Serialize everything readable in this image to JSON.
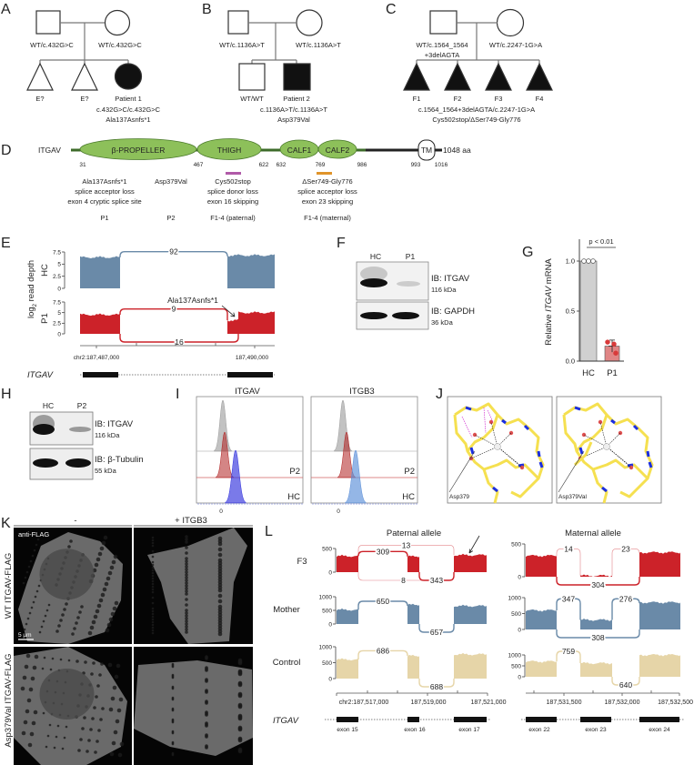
{
  "panel_labels": [
    "A",
    "B",
    "C",
    "D",
    "E",
    "F",
    "G",
    "H",
    "I",
    "J",
    "K",
    "L"
  ],
  "pedigree_a": {
    "father": "WT/c.432G>C",
    "mother": "WT/c.432G>C",
    "children": [
      "E?",
      "E?",
      "Patient 1"
    ],
    "genotype": "c.432G>C/c.432G>C",
    "protein": "Ala137Asnfs*1"
  },
  "pedigree_b": {
    "father": "WT/c.1136A>T",
    "mother": "WT/c.1136A>T",
    "children": [
      "WT/WT",
      "Patient 2"
    ],
    "genotype": "c.1136A>T/c.1136A>T",
    "protein": "Asp379Val"
  },
  "pedigree_c": {
    "father_line1": "WT/c.1564_1564",
    "father_line2": "+3delAGTA",
    "mother": "WT/c.2247-1G>A",
    "children": [
      "F1",
      "F2",
      "F3",
      "F4"
    ],
    "genotype": "c.1564_1564+3delAGTA/c.2247-1G>A",
    "protein": "Cys502stop/ΔSer749-Gly776"
  },
  "domain_map": {
    "gene": "ITGAV",
    "domains": [
      "β-PROPELLER",
      "THIGH",
      "CALF1",
      "CALF2",
      "TM"
    ],
    "positions": [
      "31",
      "467",
      "622",
      "632",
      "769",
      "986",
      "993",
      "1016"
    ],
    "length": "1048 aa",
    "annotations": [
      {
        "lines": [
          "Ala137Asnfs*1",
          "splice acceptor loss",
          "exon 4 cryptic splice site"
        ],
        "group": "P1"
      },
      {
        "lines": [
          "Asp379Val"
        ],
        "group": "P2"
      },
      {
        "lines": [
          "Cys502stop",
          "splice donor loss",
          "exon 16 skipping"
        ],
        "group": "F1-4 (paternal)"
      },
      {
        "lines": [
          "ΔSer749-Gly776",
          "splice acceptor loss",
          "exon 23 skipping"
        ],
        "group": "F1-4 (maternal)"
      }
    ],
    "colors": {
      "domain": "#8dc05a",
      "paternal_bar": "#b05aa8",
      "maternal_bar": "#e0942a"
    }
  },
  "panel_e": {
    "ylabel_prefix": "log",
    "ylabel_sub": "2",
    "ylabel_suffix": " read depth",
    "tracks": [
      {
        "label": "HC",
        "color": "#6a8aa8",
        "coverage": [
          6.4,
          6.8
        ],
        "junctions": [
          {
            "from": 0,
            "to": 1,
            "count": "92",
            "side": "top"
          }
        ]
      },
      {
        "label": "P1",
        "color": "#cc2229",
        "coverage": [
          4.5,
          3.2,
          5.0
        ],
        "junctions": [
          {
            "from": 0,
            "to": 1,
            "count": "9",
            "side": "top"
          },
          {
            "from": 0,
            "to": 2,
            "count": "16",
            "side": "bottom"
          }
        ]
      }
    ],
    "yticks": [
      "7.5",
      "5",
      "2.5",
      "0"
    ],
    "annotation": "Ala137Asnfs*1",
    "xticks": [
      "chr2:187,487,000",
      "187,490,000"
    ],
    "gene": "ITGAV"
  },
  "panel_f": {
    "lanes": [
      "HC",
      "P1"
    ],
    "blots": [
      {
        "ib": "IB: ITGAV",
        "size": "116 kDa"
      },
      {
        "ib": "IB: GAPDH",
        "size": "36 kDa"
      }
    ]
  },
  "chart_data": {
    "type": "bar",
    "title": "",
    "categories": [
      "HC",
      "P1"
    ],
    "values": [
      1.0,
      0.15
    ],
    "points": [
      [
        1.0,
        1.0,
        1.0
      ],
      [
        0.19,
        0.17,
        0.08
      ]
    ],
    "error": [
      0,
      0.06
    ],
    "ylabel_prefix": "Relative ",
    "ylabel_gene": "ITGAV",
    "ylabel_suffix": " mRNA",
    "yticks": [
      "0.0",
      "0.5",
      "1.0"
    ],
    "ylim": [
      0,
      1.2
    ],
    "significance": "p < 0.01",
    "colors": [
      "#d0d0d0",
      "#e08585"
    ]
  },
  "panel_h": {
    "lanes": [
      "HC",
      "P2"
    ],
    "blots": [
      {
        "ib": "IB: ITGAV",
        "size": "116 kDa"
      },
      {
        "ib": "IB: β-Tubulin",
        "size": "55 kDa"
      }
    ]
  },
  "panel_i": {
    "plots": [
      {
        "title": "ITGAV"
      },
      {
        "title": "ITGB3"
      }
    ],
    "rows": [
      "P2",
      "HC"
    ],
    "xtick": "0"
  },
  "panel_j": {
    "labels": [
      "Asp379",
      "Asp379Val"
    ]
  },
  "panel_k": {
    "columns": [
      "-",
      "+ ITGB3"
    ],
    "rows": [
      "WT ITGAV-FLAG",
      "Asp379Val ITGAV-FLAG"
    ],
    "stain": "anti-FLAG",
    "scale": "5 µm"
  },
  "panel_l": {
    "columns": [
      "Paternal allele",
      "Maternal allele"
    ],
    "rows": [
      {
        "label": "F3",
        "color": "#cc2229",
        "paternal": {
          "yticks": [
            "500",
            "0"
          ],
          "coverage": [
            340,
            330,
            360
          ],
          "junctions": [
            {
              "from": 0,
              "to": 1,
              "count": "309",
              "side": "top"
            },
            {
              "from": 0,
              "to": 2,
              "count": "13",
              "side": "top",
              "weak": true
            },
            {
              "from": 0,
              "to": 2,
              "count": "8",
              "side": "bottom",
              "weak": true
            },
            {
              "from": 1,
              "to": 2,
              "count": "343",
              "side": "bottom"
            }
          ]
        },
        "maternal": {
          "yticks": [
            "500",
            "0"
          ],
          "coverage": [
            320,
            15,
            370
          ],
          "junctions": [
            {
              "from": 0,
              "to": 1,
              "count": "14",
              "side": "top",
              "weak": true
            },
            {
              "from": 1,
              "to": 2,
              "count": "23",
              "side": "top",
              "weak": true
            },
            {
              "from": 0,
              "to": 2,
              "count": "304",
              "side": "bottom"
            }
          ]
        }
      },
      {
        "label": "Mother",
        "color": "#6a8aa8",
        "paternal": {
          "yticks": [
            "1000",
            "500",
            "0"
          ],
          "coverage": [
            520,
            700,
            660
          ],
          "junctions": [
            {
              "from": 0,
              "to": 1,
              "count": "650",
              "side": "top"
            },
            {
              "from": 1,
              "to": 2,
              "count": "657",
              "side": "bottom"
            }
          ]
        },
        "maternal": {
          "yticks": [
            "1000",
            "500",
            "0"
          ],
          "coverage": [
            600,
            300,
            850
          ],
          "junctions": [
            {
              "from": 0,
              "to": 1,
              "count": "347",
              "side": "top"
            },
            {
              "from": 1,
              "to": 2,
              "count": "276",
              "side": "top"
            },
            {
              "from": 0,
              "to": 2,
              "count": "308",
              "side": "bottom"
            }
          ]
        }
      },
      {
        "label": "Control",
        "color": "#e6d5a8",
        "paternal": {
          "yticks": [
            "1000",
            "500",
            "0"
          ],
          "coverage": [
            600,
            710,
            760
          ],
          "junctions": [
            {
              "from": 0,
              "to": 1,
              "count": "686",
              "side": "top"
            },
            {
              "from": 1,
              "to": 2,
              "count": "688",
              "side": "bottom"
            }
          ]
        },
        "maternal": {
          "yticks": [
            "1000",
            "500",
            "0"
          ],
          "coverage": [
            700,
            620,
            1000
          ],
          "junctions": [
            {
              "from": 0,
              "to": 1,
              "count": "759",
              "side": "top"
            },
            {
              "from": 1,
              "to": 2,
              "count": "640",
              "side": "bottom"
            }
          ]
        }
      }
    ],
    "paternal_xticks": [
      "chr2:187,517,000",
      "187,519,000",
      "187,521,000"
    ],
    "maternal_xticks": [
      "187,531,500",
      "187,532,000",
      "187,532,500"
    ],
    "gene": "ITGAV",
    "paternal_exons": [
      "exon 15",
      "exon 16",
      "exon 17"
    ],
    "maternal_exons": [
      "exon 22",
      "exon 23",
      "exon 24"
    ]
  }
}
